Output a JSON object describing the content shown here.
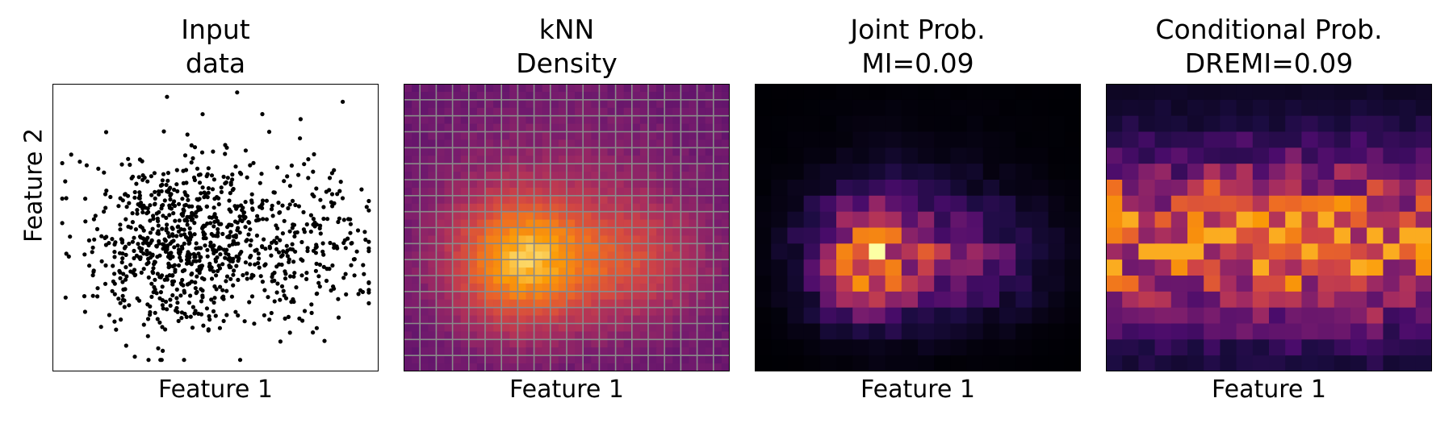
{
  "chart_data": [
    {
      "type": "scatter",
      "title": [
        "Input",
        "data"
      ],
      "xlabel": "Feature 1",
      "ylabel": "Feature 2",
      "xlim": [
        0,
        1
      ],
      "ylim": [
        0,
        1
      ],
      "grid": false,
      "point_count": 1000,
      "color": "#000000",
      "x_distribution": {
        "main_center": 0.38,
        "main_sd": 0.14,
        "secondary_center": 0.72,
        "secondary_sd": 0.14,
        "main_weight": 0.72
      },
      "y_center": 0.45,
      "y_sd": 0.13
    },
    {
      "type": "heatmap",
      "title": [
        "kNN",
        "Density"
      ],
      "xlabel": "Feature 1",
      "grid": true,
      "grid_color": "#8a8a8a",
      "colormap": "inferno",
      "bins": [
        20,
        18
      ]
    },
    {
      "type": "heatmap",
      "title": [
        "Joint Prob.",
        "MI=0.09"
      ],
      "xlabel": "Feature 1",
      "metric": {
        "name": "MI",
        "value": 0.09
      },
      "colormap": "inferno",
      "bins": [
        20,
        18
      ],
      "value_range": [
        0,
        1
      ]
    },
    {
      "type": "heatmap",
      "title": [
        "Conditional Prob.",
        "DREMI=0.09"
      ],
      "xlabel": "Feature 1",
      "metric": {
        "name": "DREMI",
        "value": 0.09
      },
      "colormap": "inferno",
      "bins": [
        20,
        18
      ],
      "value_range": [
        0,
        1
      ]
    }
  ],
  "colors": {
    "background": "#ffffff",
    "axes": "#000000",
    "grid": "#8a8a8a"
  }
}
